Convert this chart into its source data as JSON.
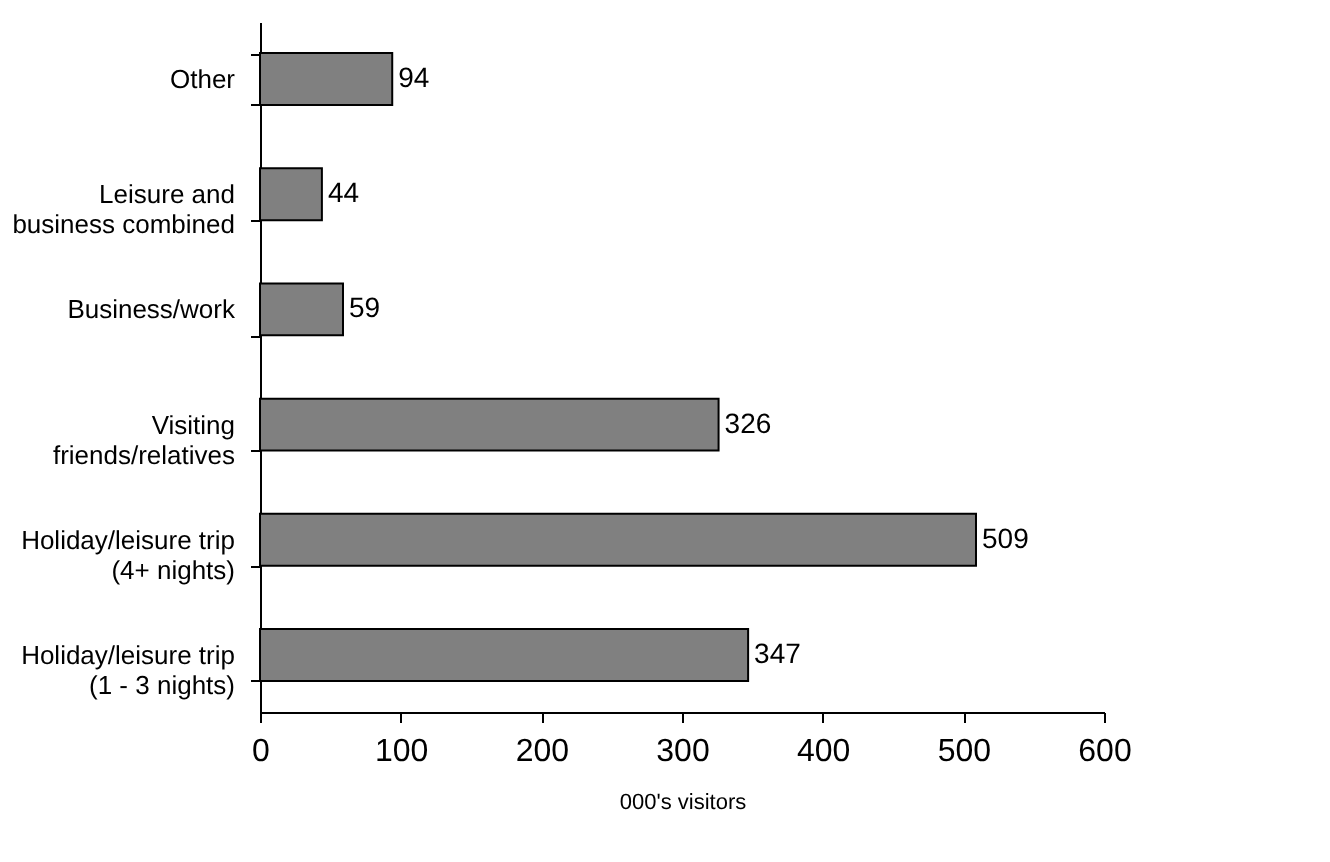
{
  "chart_data": {
    "type": "bar",
    "orientation": "horizontal",
    "xlabel": "000's visitors",
    "categories": [
      "Other",
      "Leisure and business combined",
      "Business/work",
      "Visiting friends/relatives",
      "Holiday/leisure trip (4+ nights)",
      "Holiday/leisure trip (1 - 3 nights)"
    ],
    "values": [
      94,
      44,
      59,
      326,
      509,
      347
    ],
    "color": "#808080",
    "xlim": [
      0,
      600
    ],
    "xticks": [
      0,
      100,
      200,
      300,
      400,
      500,
      600
    ],
    "grid": false,
    "data_labels": true
  }
}
